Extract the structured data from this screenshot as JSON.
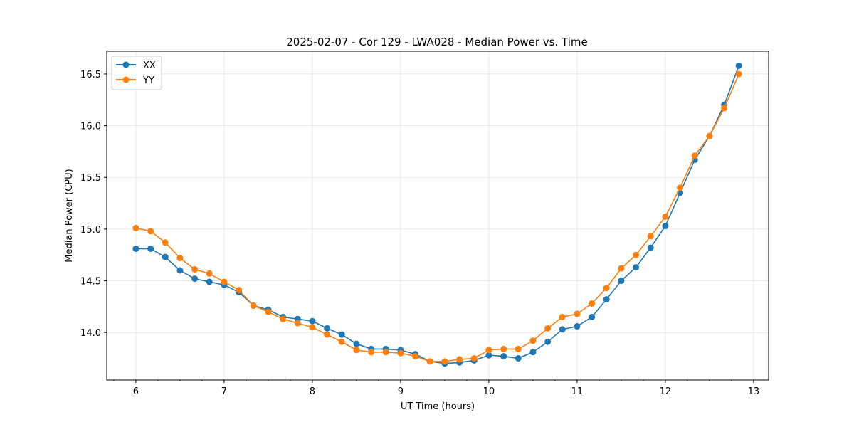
{
  "chart_data": {
    "type": "line",
    "title": "2025-02-07 - Cor 129 - LWA028 - Median Power vs. Time",
    "xlabel": "UT Time (hours)",
    "ylabel": "Median Power (CPU)",
    "xlim": [
      5.67,
      13.17
    ],
    "ylim": [
      13.54,
      16.72
    ],
    "xticks": [
      6,
      7,
      8,
      9,
      10,
      11,
      12,
      13
    ],
    "yticks": [
      14.0,
      14.5,
      15.0,
      15.5,
      16.0,
      16.5
    ],
    "xtick_labels": [
      "6",
      "7",
      "8",
      "9",
      "10",
      "11",
      "12",
      "13"
    ],
    "ytick_labels": [
      "14.0",
      "14.5",
      "15.0",
      "15.5",
      "16.0",
      "16.5"
    ],
    "grid": true,
    "legend_position": "top-left",
    "x": [
      6.0,
      6.167,
      6.333,
      6.5,
      6.667,
      6.833,
      7.0,
      7.167,
      7.333,
      7.5,
      7.667,
      7.833,
      8.0,
      8.167,
      8.333,
      8.5,
      8.667,
      8.833,
      9.0,
      9.167,
      9.333,
      9.5,
      9.667,
      9.833,
      10.0,
      10.167,
      10.333,
      10.5,
      10.667,
      10.833,
      11.0,
      11.167,
      11.333,
      11.5,
      11.667,
      11.833,
      12.0,
      12.167,
      12.333,
      12.5,
      12.667,
      12.833
    ],
    "series": [
      {
        "name": "XX",
        "color": "#1f77b4",
        "values": [
          14.81,
          14.81,
          14.73,
          14.6,
          14.52,
          14.49,
          14.46,
          14.39,
          14.26,
          14.22,
          14.15,
          14.13,
          14.11,
          14.04,
          13.98,
          13.89,
          13.84,
          13.84,
          13.83,
          13.79,
          13.72,
          13.7,
          13.71,
          13.73,
          13.78,
          13.77,
          13.75,
          13.81,
          13.91,
          14.03,
          14.06,
          14.15,
          14.32,
          14.5,
          14.63,
          14.82,
          15.03,
          15.35,
          15.67,
          15.9,
          16.2,
          16.58
        ]
      },
      {
        "name": "YY",
        "color": "#ff7f0e",
        "values": [
          15.01,
          14.98,
          14.87,
          14.72,
          14.61,
          14.57,
          14.49,
          14.41,
          14.26,
          14.2,
          14.13,
          14.09,
          14.05,
          13.98,
          13.91,
          13.83,
          13.81,
          13.81,
          13.8,
          13.77,
          13.72,
          13.72,
          13.74,
          13.75,
          13.83,
          13.84,
          13.84,
          13.92,
          14.04,
          14.15,
          14.18,
          14.28,
          14.43,
          14.62,
          14.75,
          14.93,
          15.12,
          15.4,
          15.71,
          15.9,
          16.17,
          16.5
        ]
      }
    ]
  }
}
